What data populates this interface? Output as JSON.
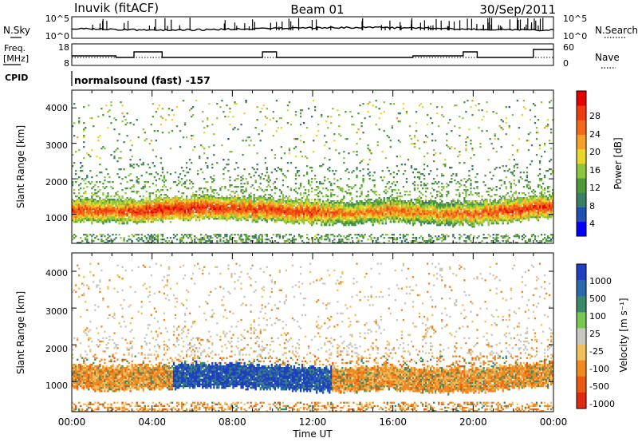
{
  "header": {
    "station": "Inuvik (fitACF)",
    "beam": "Beam 01",
    "date": "30/Sep/2011"
  },
  "sky_panel": {
    "label": "N.Sky",
    "right_label": "N.Search",
    "left_ticks": [
      "10^5",
      "10^0"
    ],
    "right_ticks": [
      "10^5",
      "10^0"
    ]
  },
  "freq_panel": {
    "label_line1": "Freq.",
    "label_line2": "[MHz]",
    "right_label": "Nave",
    "left_ticks": [
      "18",
      "8"
    ],
    "right_ticks": [
      "60",
      "0"
    ]
  },
  "cpid": {
    "label": "CPID",
    "text": "normalsound (fast) -157"
  },
  "power_panel": {
    "ylabel": "Slant Range [km]",
    "yticks": [
      "4000",
      "3000",
      "2000",
      "1000"
    ],
    "colorbar_label": "Power [dB]",
    "colorbar_ticks": [
      "28",
      "24",
      "20",
      "16",
      "12",
      "8",
      "4"
    ],
    "colors": [
      "#0000ff",
      "#2050b0",
      "#3a7f66",
      "#4c9a3a",
      "#8cc63e",
      "#e8d82a",
      "#f7a12a",
      "#f26b12",
      "#ee3a10",
      "#e60000"
    ]
  },
  "velocity_panel": {
    "ylabel": "Slant Range [km]",
    "yticks": [
      "4000",
      "3000",
      "2000",
      "1000"
    ],
    "colorbar_label": "Velocity [m s⁻¹]",
    "colorbar_ticks": [
      "1000",
      "500",
      "100",
      "25",
      "-25",
      "-100",
      "-500",
      "-1000"
    ],
    "colors": [
      "#1f3fbf",
      "#2a6aa8",
      "#3a8a6a",
      "#78c850",
      "#c8c8c0",
      "#f0c060",
      "#f08a20",
      "#e85a10",
      "#e02a10"
    ]
  },
  "xaxis": {
    "label": "Time UT",
    "ticks": [
      "00:00",
      "04:00",
      "08:00",
      "12:00",
      "16:00",
      "20:00",
      "00:00"
    ]
  },
  "chart_data": {
    "type": "heatmap",
    "title": "Inuvik (fitACF) Beam 01 30/Sep/2011",
    "x_range_hours": [
      0,
      24
    ],
    "y_range_km": [
      180,
      4500
    ],
    "ylabel": "Slant Range [km]",
    "xlabel": "Time UT",
    "series": [
      {
        "name": "Power [dB]",
        "range": [
          0,
          32
        ]
      },
      {
        "name": "Velocity [m s⁻¹]",
        "range": [
          -1000,
          1000
        ]
      }
    ],
    "main_echo_band": {
      "hours": [
        0,
        2,
        4,
        6,
        8,
        10,
        12,
        14,
        16,
        18,
        20,
        22,
        24
      ],
      "center_km": [
        1100,
        1050,
        1100,
        1150,
        1150,
        1100,
        1050,
        1000,
        1100,
        1000,
        1000,
        1100,
        1200
      ],
      "peak_power_db": [
        28,
        26,
        30,
        30,
        28,
        28,
        28,
        24,
        26,
        24,
        26,
        28,
        28
      ]
    }
  }
}
